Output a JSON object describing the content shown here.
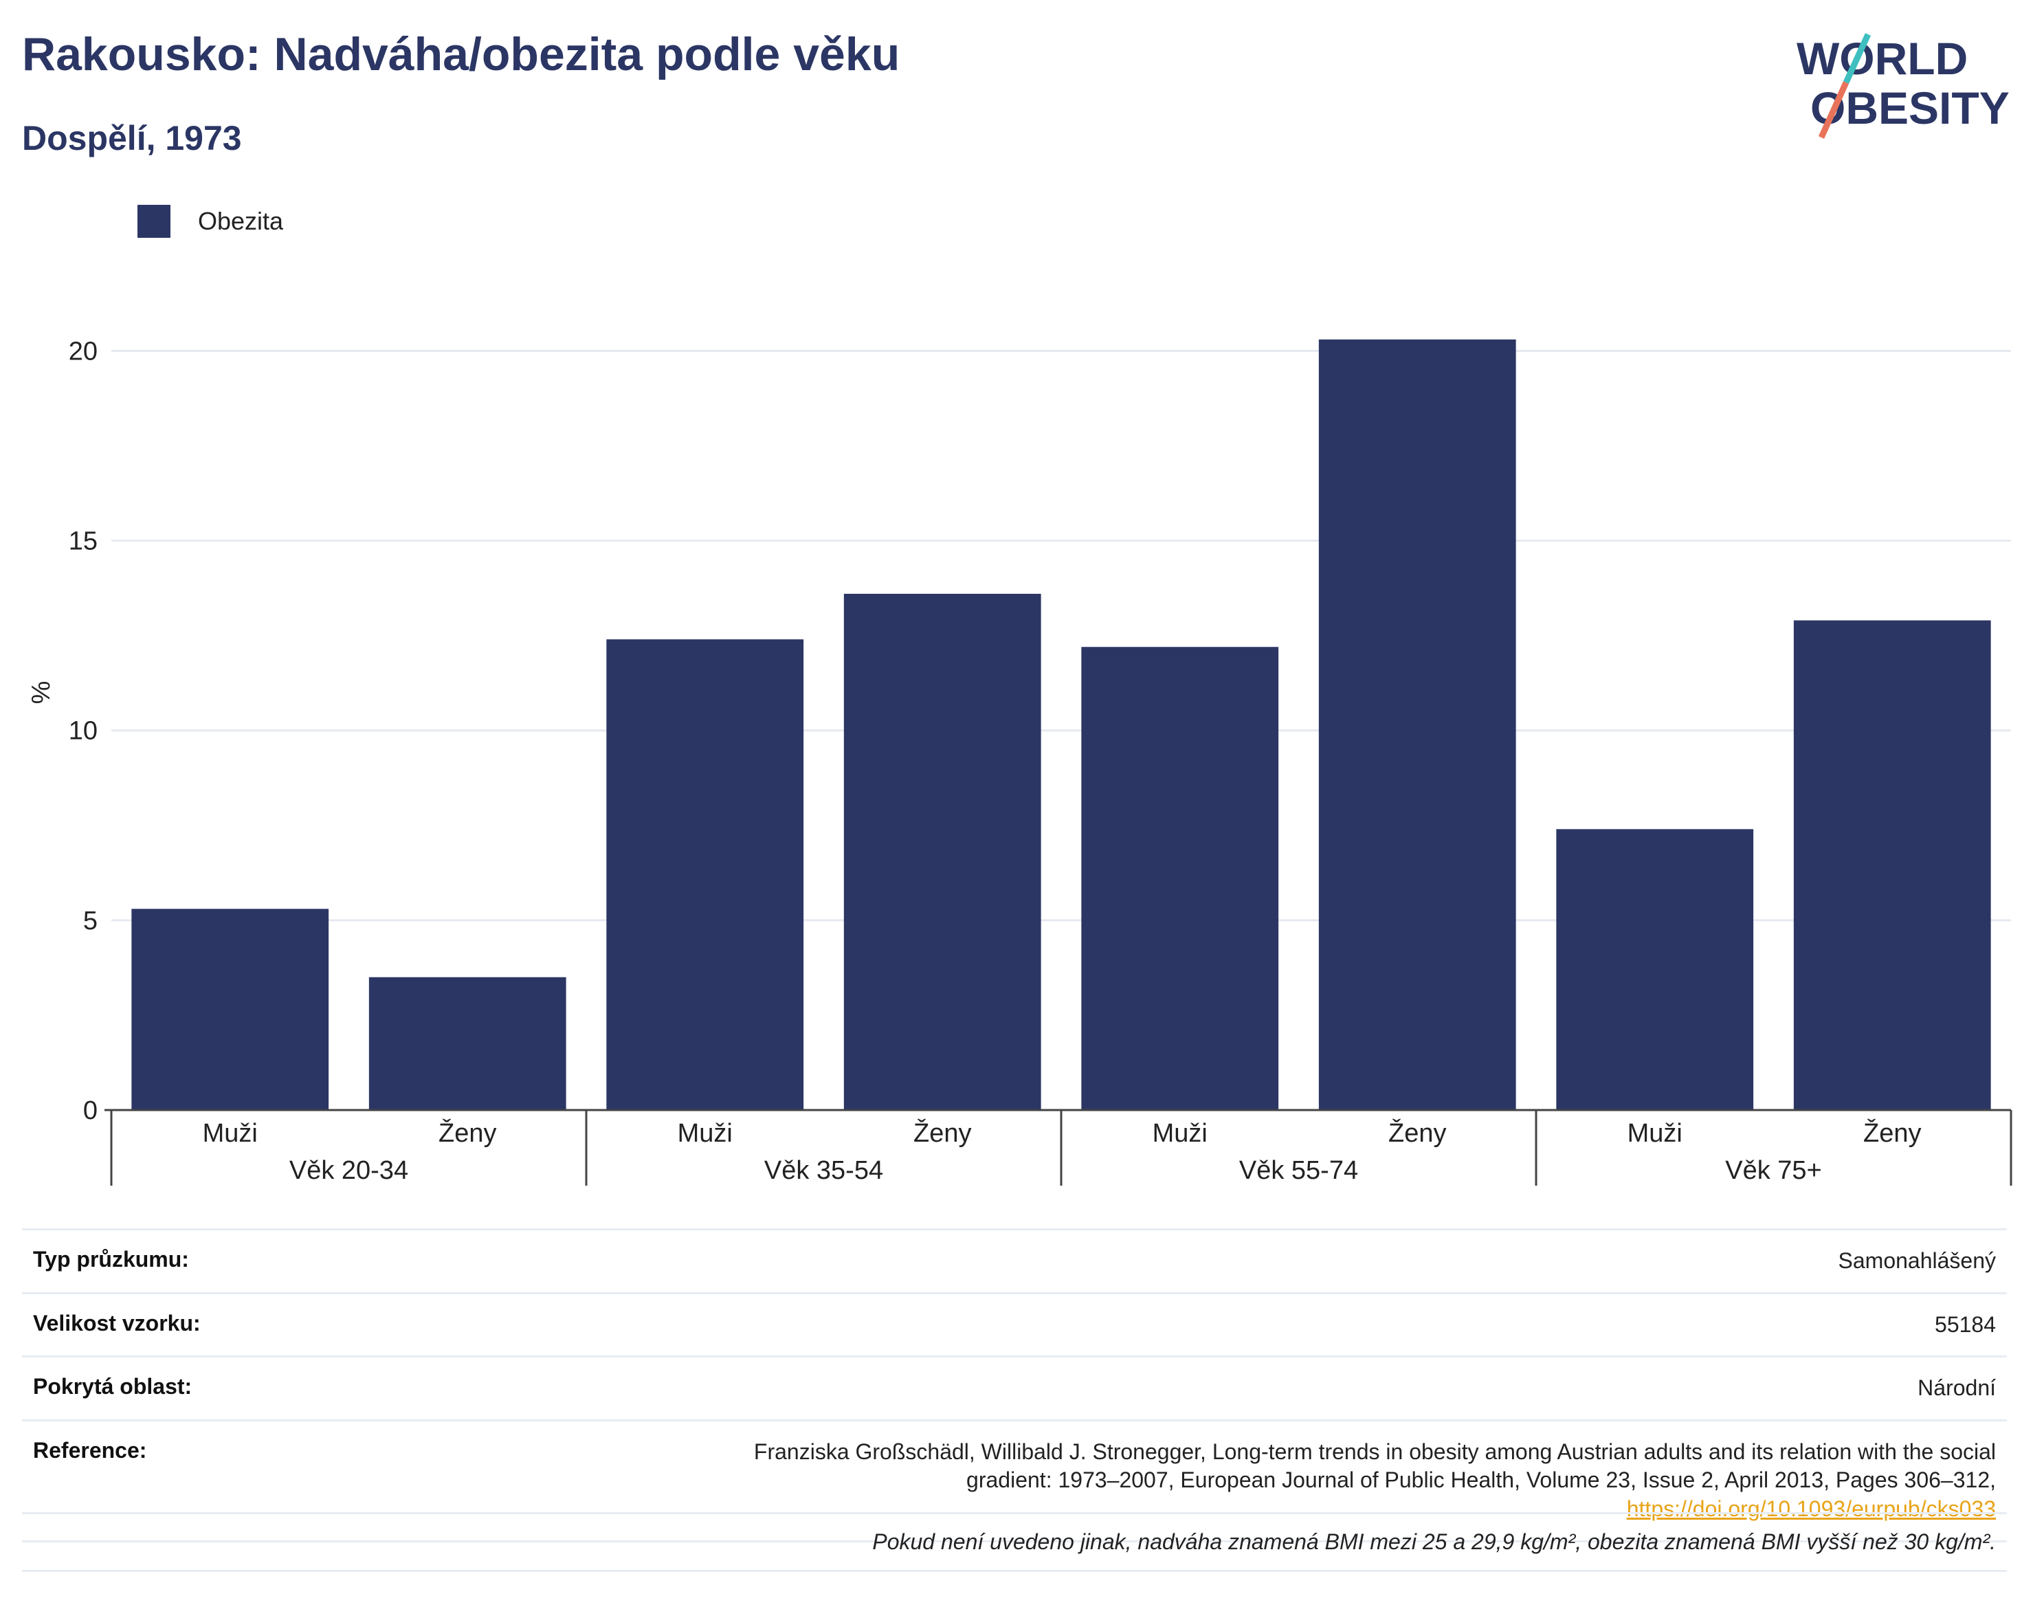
{
  "header": {
    "title": "Rakousko: Nadváha/obezita podle věku",
    "subtitle": "Dospělí, 1973"
  },
  "logo": {
    "line1": "WORLD",
    "line2": "OBESITY",
    "accent_colors": [
      "#3fbfbf",
      "#e8735a"
    ]
  },
  "legend": {
    "label": "Obezita",
    "color": "#2b3664"
  },
  "chart_data": {
    "type": "bar",
    "groups": [
      "Věk 20-34",
      "Věk 35-54",
      "Věk 55-74",
      "Věk 75+"
    ],
    "subcategories": [
      "Muži",
      "Ženy"
    ],
    "series": [
      {
        "name": "Obezita",
        "values": [
          5.3,
          3.5,
          12.4,
          13.6,
          12.2,
          20.3,
          7.4,
          12.9
        ]
      }
    ],
    "ylabel": "%",
    "ylim": [
      0,
      22
    ],
    "yticks": [
      0,
      5,
      10,
      15,
      20
    ],
    "grid": true,
    "bar_color": "#2b3664"
  },
  "info": {
    "survey_type_label": "Typ průzkumu:",
    "survey_type_value": "Samonahlášený",
    "sample_size_label": "Velikost vzorku:",
    "sample_size_value": "55184",
    "coverage_label": "Pokrytá oblast:",
    "coverage_value": "Národní",
    "reference_label": "Reference:",
    "reference_line1": "Franziska Großschädl, Willibald J. Stronegger, Long-term trends in obesity among Austrian adults and its relation with the social",
    "reference_line2": "gradient: 1973–2007, European Journal of Public Health, Volume 23, Issue 2, April 2013, Pages 306–312,",
    "reference_link": "https://doi.org/10.1093/eurpub/cks033"
  },
  "footnote": "Pokud není uvedeno jinak, nadváha znamená BMI mezi 25 a 29,9 kg/m², obezita znamená BMI vyšší než 30 kg/m²."
}
